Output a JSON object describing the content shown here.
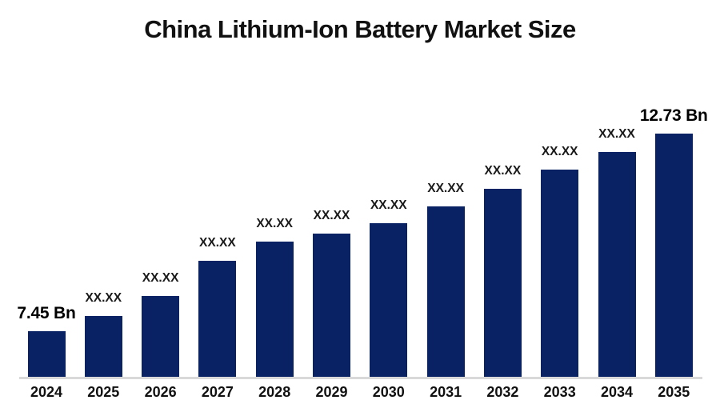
{
  "chart_data": {
    "type": "bar",
    "title": "China Lithium-Ion Battery Market Size",
    "unit": "USD Bn",
    "categories": [
      "2024",
      "2025",
      "2026",
      "2027",
      "2028",
      "2029",
      "2030",
      "2031",
      "2032",
      "2033",
      "2034",
      "2035"
    ],
    "values": [
      7.45,
      7.85,
      8.39,
      9.33,
      9.84,
      10.06,
      10.33,
      10.78,
      11.25,
      11.77,
      12.24,
      12.73
    ],
    "value_labels": [
      "7.45 Bn",
      "XX.XX",
      "XX.XX",
      "XX.XX",
      "XX.XX",
      "XX.XX",
      "XX.XX",
      "XX.XX",
      "XX.XX",
      "XX.XX",
      "XX.XX",
      "12.73 Bn"
    ],
    "emphasized_label_indices": [
      0,
      11
    ],
    "first_value_label": "7.45 Bn",
    "last_value_label": "12.73 Bn",
    "masked_value_label": "XX.XX",
    "ylim": [
      6.23,
      13.52
    ],
    "gridlines": false,
    "legend": "none",
    "xlabel": "",
    "ylabel": "",
    "colors": {
      "bar": "#092264",
      "axis_line": "#d9d9d9",
      "title_text": "#111111",
      "label_text": "#1a1a1a",
      "background": "#ffffff"
    }
  }
}
